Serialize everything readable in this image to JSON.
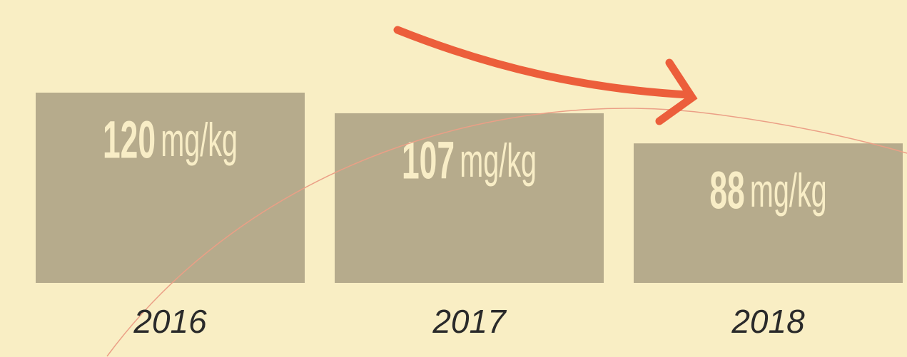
{
  "chart_data": {
    "type": "bar",
    "categories": [
      "2016",
      "2017",
      "2018"
    ],
    "values": [
      120,
      107,
      88
    ],
    "unit": "mg/kg",
    "color": "#b6ab8c",
    "ylim": [
      0,
      120
    ]
  }
}
